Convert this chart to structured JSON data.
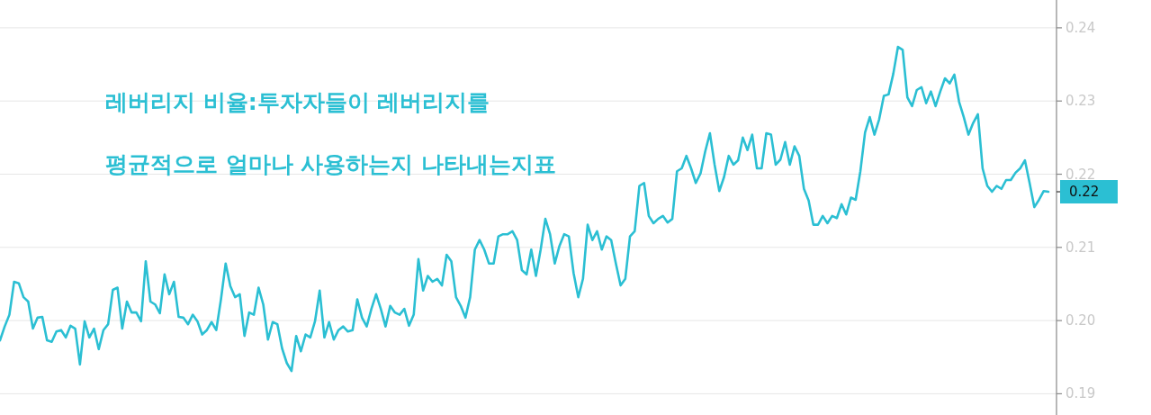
{
  "chart_data": {
    "type": "line",
    "annotations": [
      "레버리지 비율:투자자들이 레버리지를",
      "평균적으로 얼마나 사용하는지 나타내는지표",
      "0.22"
    ],
    "categories": [
      null,
      null,
      null,
      null,
      null,
      null,
      null,
      null,
      null,
      null,
      null,
      null,
      null,
      null,
      null,
      null,
      null,
      null,
      null,
      null,
      null,
      null,
      null,
      null,
      null,
      null,
      null,
      null,
      null,
      null,
      null,
      null,
      null,
      null,
      null,
      null,
      null,
      null,
      null,
      null,
      null,
      null,
      null,
      null,
      null,
      null,
      null,
      null,
      null,
      null,
      null,
      null,
      null,
      null,
      null,
      null,
      null,
      null,
      null,
      null,
      null,
      null,
      null,
      null,
      null,
      null,
      null,
      null,
      null,
      null,
      null,
      null,
      null,
      null,
      null,
      null,
      null,
      null,
      null,
      null,
      null,
      null,
      null,
      null,
      null,
      null,
      null,
      null,
      null,
      null,
      null,
      null,
      null,
      null,
      null,
      null,
      null,
      null,
      null,
      null,
      null,
      null,
      null,
      null,
      null,
      null,
      null,
      null,
      null,
      null,
      null,
      null,
      null,
      null,
      null,
      null,
      null,
      null,
      null,
      null,
      null,
      null,
      null,
      null,
      null,
      null,
      null,
      null,
      null,
      null,
      null,
      null,
      null,
      null,
      null,
      null,
      null,
      null,
      null,
      null,
      null,
      null,
      null,
      null,
      null,
      null,
      null,
      null,
      null,
      null,
      null,
      null,
      null,
      null,
      null,
      null,
      null,
      null,
      null,
      null,
      null,
      null,
      null,
      null,
      null,
      null,
      null,
      null,
      null,
      null,
      null,
      null,
      null,
      null,
      null,
      null,
      null,
      null,
      null,
      null,
      null,
      null,
      null,
      null,
      null,
      null,
      null,
      null,
      null,
      null,
      null,
      null,
      null,
      null,
      null,
      null,
      null,
      null,
      null,
      null,
      null,
      null,
      null,
      null,
      null,
      null,
      null,
      null,
      null,
      null,
      null,
      null,
      null,
      null,
      null,
      null,
      null,
      null,
      null,
      null,
      null,
      null,
      null,
      null
    ],
    "series": [
      {
        "color": "#2bbfd3",
        "values": [
          0.1973,
          0.1992,
          0.2008,
          0.2053,
          0.2051,
          0.2032,
          0.2026,
          0.1989,
          0.2004,
          0.2005,
          0.1973,
          0.1971,
          0.1985,
          0.1987,
          0.1977,
          0.1993,
          0.1989,
          0.194,
          0.1999,
          0.1977,
          0.1989,
          0.1961,
          0.1987,
          0.1995,
          0.2042,
          0.2045,
          0.1989,
          0.2026,
          0.2011,
          0.2011,
          0.1999,
          0.2081,
          0.2026,
          0.2022,
          0.201,
          0.2063,
          0.2036,
          0.2053,
          0.2005,
          0.2004,
          0.1995,
          0.2008,
          0.1999,
          0.1981,
          0.1987,
          0.1998,
          0.1987,
          0.2029,
          0.2078,
          0.2047,
          0.2032,
          0.2036,
          0.1979,
          0.2011,
          0.2008,
          0.2045,
          0.2022,
          0.1974,
          0.1998,
          0.1995,
          0.1962,
          0.1942,
          0.1931,
          0.1979,
          0.1958,
          0.1981,
          0.1977,
          0.1999,
          0.2041,
          0.1977,
          0.1998,
          0.1974,
          0.1987,
          0.1992,
          0.1985,
          0.1987,
          0.2029,
          0.2004,
          0.1992,
          0.2016,
          0.2036,
          0.2016,
          0.1992,
          0.202,
          0.2011,
          0.2008,
          0.2016,
          0.1993,
          0.2008,
          0.2084,
          0.2041,
          0.2061,
          0.2053,
          0.2057,
          0.2048,
          0.209,
          0.2081,
          0.2032,
          0.202,
          0.2004,
          0.2032,
          0.2097,
          0.211,
          0.2097,
          0.2078,
          0.2078,
          0.2115,
          0.2118,
          0.2118,
          0.2122,
          0.211,
          0.2069,
          0.2063,
          0.2097,
          0.2061,
          0.2097,
          0.2139,
          0.2118,
          0.2078,
          0.2102,
          0.2118,
          0.2115,
          0.2065,
          0.2032,
          0.2057,
          0.2131,
          0.211,
          0.2122,
          0.2097,
          0.2115,
          0.211,
          0.2078,
          0.2048,
          0.2057,
          0.2115,
          0.2122,
          0.2184,
          0.2188,
          0.2143,
          0.2133,
          0.2139,
          0.2143,
          0.2134,
          0.2139,
          0.2204,
          0.2208,
          0.2225,
          0.2208,
          0.2188,
          0.2201,
          0.2231,
          0.2256,
          0.2213,
          0.2177,
          0.2196,
          0.2225,
          0.2213,
          0.2219,
          0.225,
          0.2233,
          0.2254,
          0.2208,
          0.2208,
          0.2256,
          0.2254,
          0.2213,
          0.222,
          0.2244,
          0.2213,
          0.2238,
          0.2225,
          0.218,
          0.2164,
          0.2131,
          0.2131,
          0.2143,
          0.2133,
          0.2143,
          0.214,
          0.2159,
          0.2145,
          0.2168,
          0.2165,
          0.2204,
          0.2257,
          0.2278,
          0.2254,
          0.2275,
          0.2307,
          0.2309,
          0.2337,
          0.2374,
          0.237,
          0.2305,
          0.2293,
          0.2315,
          0.2319,
          0.2297,
          0.2313,
          0.2293,
          0.2313,
          0.2331,
          0.2324,
          0.2336,
          0.2299,
          0.2278,
          0.2254,
          0.227,
          0.2282,
          0.2208,
          0.2184,
          0.2176,
          0.2184,
          0.218,
          0.2192,
          0.2192,
          0.2202,
          0.2208,
          0.2219,
          0.2188,
          0.2155,
          0.2165,
          0.2177,
          0.2176
        ]
      }
    ],
    "ylim": [
      0.1871,
      0.2438
    ],
    "yticks": [
      {
        "value": 0.19,
        "label": "0.19"
      },
      {
        "value": 0.2,
        "label": "0.20"
      },
      {
        "value": 0.21,
        "label": "0.21"
      },
      {
        "value": 0.22,
        "label": "0.22"
      },
      {
        "value": 0.23,
        "label": "0.23"
      },
      {
        "value": 0.24,
        "label": "0.24"
      }
    ],
    "tick_labels": "y",
    "grid": "y",
    "marker": "none",
    "line_style": "solid"
  }
}
